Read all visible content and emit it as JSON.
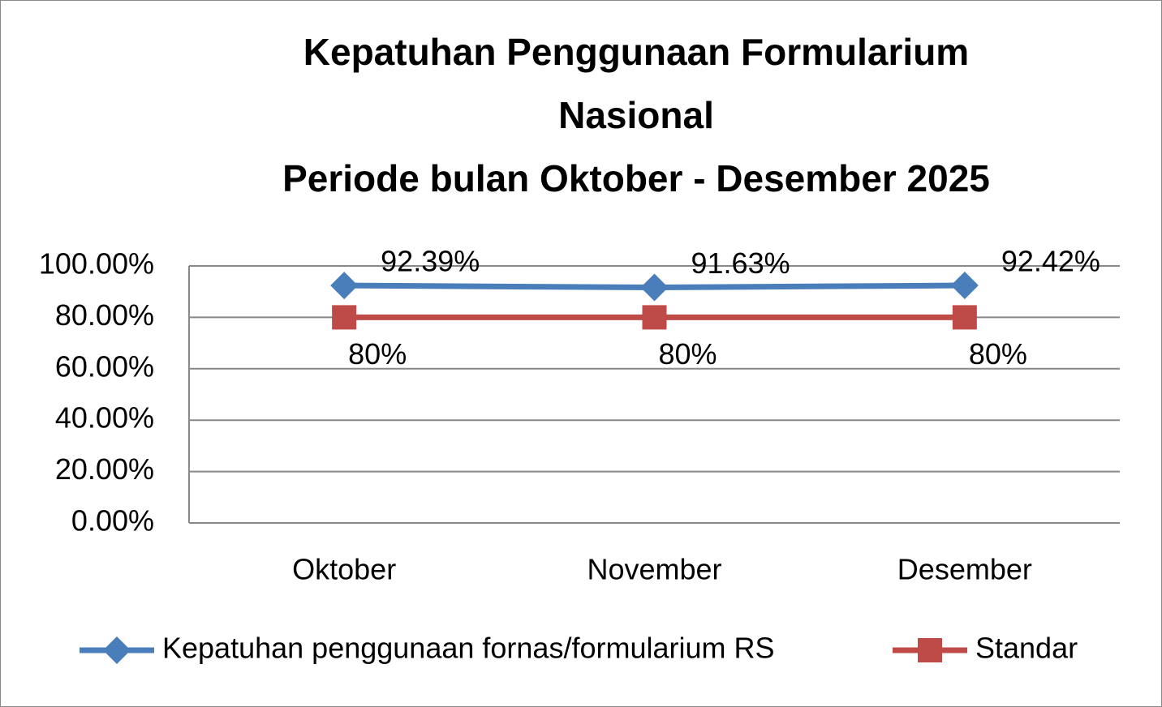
{
  "chart_data": {
    "type": "line",
    "title": [
      "Kepatuhan Penggunaan Formularium",
      "Nasional",
      "Periode bulan Oktober - Desember 2025"
    ],
    "categories": [
      "Oktober",
      "November",
      "Desember"
    ],
    "series": [
      {
        "name": "Kepatuhan penggunaan fornas/formularium RS",
        "color": "#4a7ebb",
        "marker": "diamond",
        "values": [
          92.39,
          91.63,
          92.42
        ],
        "value_labels": [
          "92.39%",
          "91.63%",
          "92.42%"
        ]
      },
      {
        "name": "Standar",
        "color": "#be4b48",
        "marker": "square",
        "values": [
          80,
          80,
          80
        ],
        "value_labels": [
          "80%",
          "80%",
          "80%"
        ]
      }
    ],
    "ylim": [
      0,
      100
    ],
    "yticks": [
      {
        "value": 0,
        "label": "0.00%"
      },
      {
        "value": 20,
        "label": "20.00%"
      },
      {
        "value": 40,
        "label": "40.00%"
      },
      {
        "value": 60,
        "label": "60.00%"
      },
      {
        "value": 80,
        "label": "80.00%"
      },
      {
        "value": 100,
        "label": "100.00%"
      }
    ],
    "grid": true,
    "legend": "bottom"
  }
}
